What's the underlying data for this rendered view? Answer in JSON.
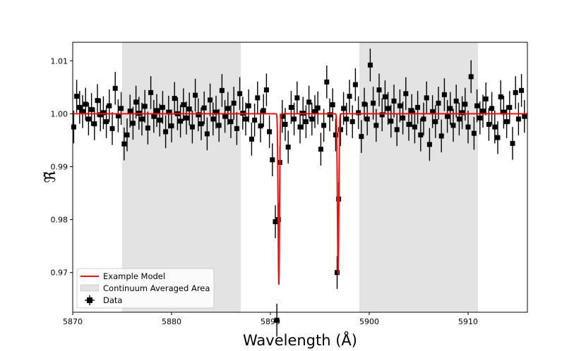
{
  "chart_data": {
    "type": "scatter",
    "title": "",
    "xlabel": "Wavelength (Å)",
    "ylabel": "ℜ̃",
    "xlim": [
      5870,
      5916
    ],
    "ylim": [
      0.9625,
      1.0135
    ],
    "xticks": [
      5870,
      5880,
      5890,
      5900,
      5910
    ],
    "xtick_labels": [
      "5870",
      "5880",
      "5890",
      "5900",
      "5910"
    ],
    "yticks": [
      0.97,
      0.98,
      0.99,
      1.0,
      1.01
    ],
    "ytick_labels": [
      "0.97",
      "0.98",
      "0.99",
      "1.00",
      "1.01"
    ],
    "shaded_regions": [
      {
        "name": "Continuum Averaged Area",
        "x_range": [
          5875,
          5887
        ],
        "color": "#e3e3e3"
      },
      {
        "name": "Continuum Averaged Area",
        "x_range": [
          5899,
          5911
        ],
        "color": "#e3e3e3"
      }
    ],
    "series": [
      {
        "name": "Data",
        "kind": "errorbar",
        "color": "#000000",
        "x": [
          5870.1,
          5870.4,
          5870.7,
          5871.0,
          5871.3,
          5871.6,
          5871.9,
          5872.2,
          5872.5,
          5872.8,
          5873.1,
          5873.4,
          5873.7,
          5874.0,
          5874.3,
          5874.6,
          5874.9,
          5875.2,
          5875.5,
          5875.8,
          5876.1,
          5876.4,
          5876.7,
          5877.0,
          5877.3,
          5877.6,
          5877.9,
          5878.2,
          5878.5,
          5878.8,
          5879.1,
          5879.4,
          5879.7,
          5880.0,
          5880.3,
          5880.6,
          5880.9,
          5881.2,
          5881.5,
          5881.8,
          5882.1,
          5882.4,
          5882.7,
          5883.0,
          5883.3,
          5883.6,
          5883.9,
          5884.2,
          5884.5,
          5884.8,
          5885.1,
          5885.4,
          5885.7,
          5886.0,
          5886.3,
          5886.6,
          5886.9,
          5887.2,
          5887.5,
          5887.8,
          5888.1,
          5888.4,
          5888.7,
          5889.0,
          5889.3,
          5889.6,
          5889.9,
          5890.2,
          5890.5,
          5890.65,
          5890.8,
          5890.95,
          5891.2,
          5891.5,
          5891.8,
          5892.1,
          5892.4,
          5892.7,
          5893.0,
          5893.3,
          5893.6,
          5893.9,
          5894.2,
          5894.5,
          5894.8,
          5895.1,
          5895.4,
          5895.7,
          5896.0,
          5896.3,
          5896.6,
          5896.75,
          5896.9,
          5897.1,
          5897.4,
          5897.7,
          5898.0,
          5898.3,
          5898.6,
          5898.9,
          5899.2,
          5899.5,
          5899.8,
          5900.1,
          5900.4,
          5900.7,
          5901.0,
          5901.3,
          5901.6,
          5901.9,
          5902.2,
          5902.5,
          5902.8,
          5903.1,
          5903.4,
          5903.7,
          5904.0,
          5904.3,
          5904.6,
          5904.9,
          5905.2,
          5905.5,
          5905.8,
          5906.1,
          5906.4,
          5906.7,
          5907.0,
          5907.3,
          5907.6,
          5907.9,
          5908.2,
          5908.5,
          5908.8,
          5909.1,
          5909.4,
          5909.7,
          5910.0,
          5910.3,
          5910.6,
          5910.9,
          5911.2,
          5911.5,
          5911.8,
          5912.1,
          5912.4,
          5912.7,
          5913.0,
          5913.3,
          5913.6,
          5913.9,
          5914.2,
          5914.5,
          5914.8,
          5915.1,
          5915.4,
          5915.7
        ],
        "y": [
          0.9975,
          1.0033,
          1.0012,
          1.0004,
          1.0018,
          0.999,
          1.0008,
          0.9981,
          1.0025,
          0.9998,
          1.0002,
          0.9985,
          1.0015,
          0.9972,
          1.0048,
          0.9996,
          1.001,
          0.9943,
          0.996,
          1.0005,
          0.9982,
          1.0022,
          1.0001,
          0.999,
          1.0014,
          0.9973,
          1.004,
          0.9995,
          1.0006,
          0.9988,
          1.0012,
          0.9966,
          1.0003,
          0.9977,
          1.0029,
          1.0,
          0.9986,
          1.0017,
          0.9992,
          1.0009,
          0.9975,
          1.0035,
          0.9998,
          0.9981,
          1.0011,
          0.9962,
          1.0026,
          0.999,
          1.0003,
          0.9978,
          1.0044,
          0.9995,
          1.001,
          0.9985,
          1.002,
          0.9972,
          1.0038,
          1.0001,
          0.999,
          1.0015,
          0.9952,
          0.9988,
          1.003,
          0.9977,
          1.0006,
          1.0045,
          0.9966,
          0.9913,
          0.9796,
          0.961,
          0.98,
          0.9908,
          0.9995,
          0.998,
          0.9937,
          1.0012,
          0.999,
          1.003,
          0.9975,
          1.0001,
          0.9985,
          1.0022,
          0.999,
          1.0004,
          1.0011,
          0.9933,
          0.9978,
          1.006,
          0.9998,
          1.0017,
          0.996,
          0.97,
          0.9839,
          0.997,
          1.001,
          0.999,
          1.0033,
          0.9985,
          1.0055,
          1.0002,
          0.9957,
          1.0018,
          0.999,
          1.0092,
          1.002,
          0.9978,
          1.0045,
          0.9998,
          1.0032,
          1.001,
          0.9986,
          1.0024,
          0.997,
          1.0015,
          0.9992,
          1.0038,
          0.998,
          1.0006,
          0.9975,
          1.0012,
          0.996,
          0.999,
          1.003,
          0.9942,
          1.0004,
          0.9985,
          1.002,
          0.9958,
          1.0036,
          0.9995,
          1.001,
          0.9978,
          1.0024,
          0.999,
          1.0002,
          1.0018,
          0.9975,
          1.007,
          0.9963,
          1.0015,
          0.9992,
          1.0005,
          1.0028,
          0.998,
          1.001,
          0.9975,
          0.9955,
          1.0032,
          1.0003,
          0.9985,
          1.0012,
          0.9944,
          1.004,
          0.999,
          1.0044,
          0.9995
        ],
        "yerr": 0.0031
      },
      {
        "name": "Example Model",
        "kind": "line",
        "color": "#ee1111",
        "continuum": 1.0,
        "lines": [
          {
            "center": 5890.85,
            "depth": 0.0322,
            "width": 0.07
          },
          {
            "center": 5896.85,
            "depth": 0.0302,
            "width": 0.07
          }
        ]
      }
    ],
    "legend": {
      "position": "bottom-left",
      "entries": [
        {
          "label": "Example Model",
          "kind": "line",
          "color": "#ee1111"
        },
        {
          "label": "Continuum Averaged Area",
          "kind": "patch",
          "color": "#e3e3e3"
        },
        {
          "label": "Data",
          "kind": "marker",
          "color": "#000000"
        }
      ]
    }
  }
}
